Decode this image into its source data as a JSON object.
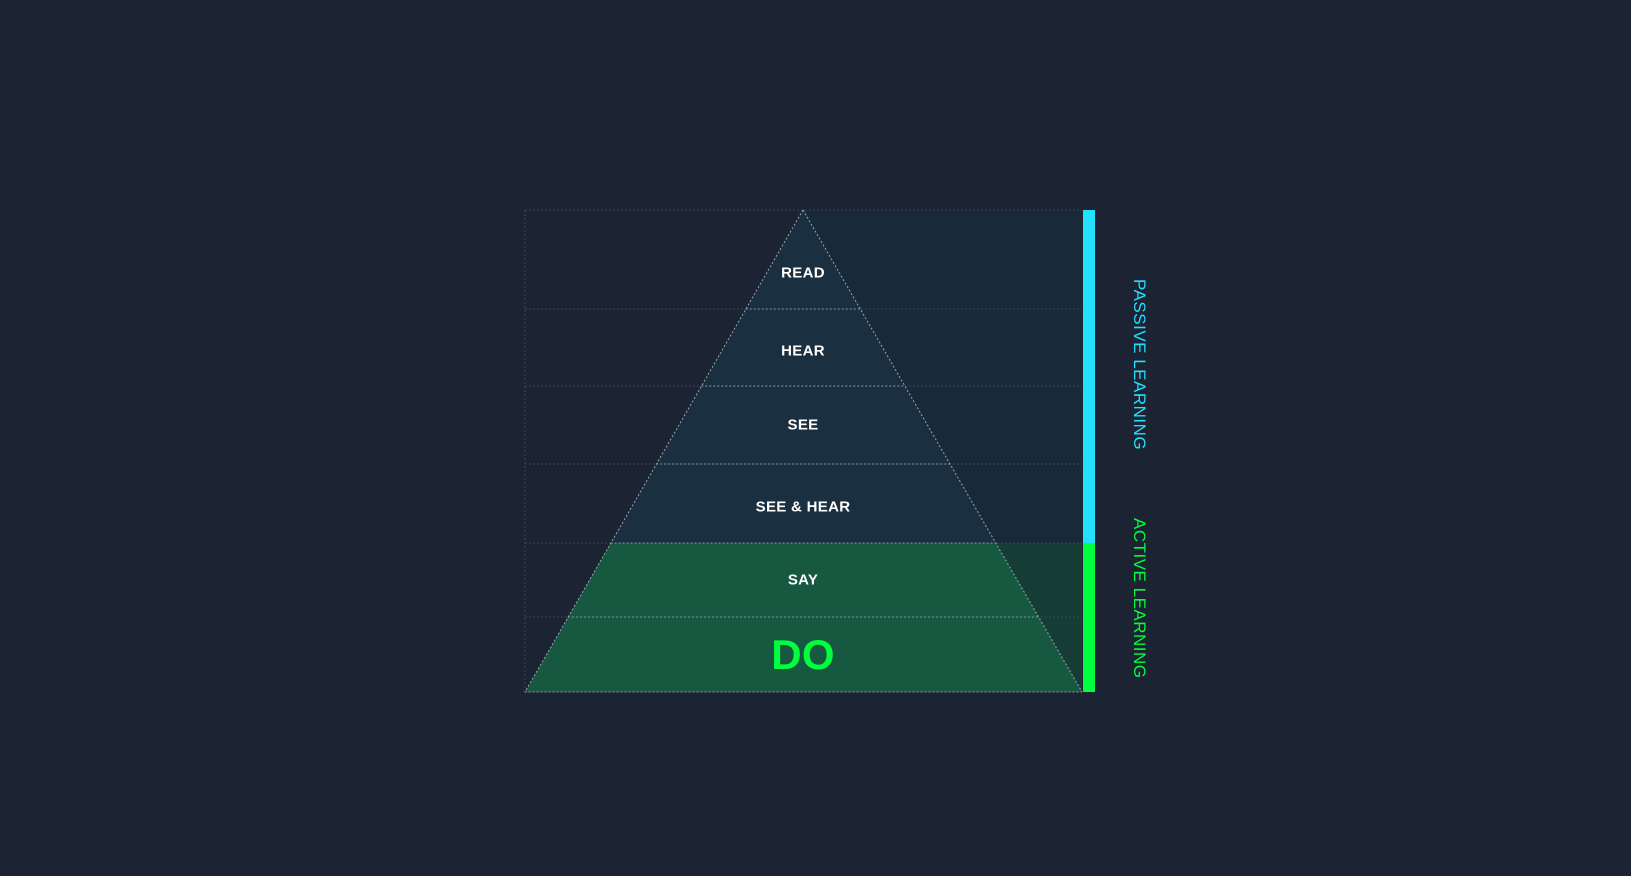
{
  "tiers": [
    {
      "label": "READ",
      "group": "passive"
    },
    {
      "label": "HEAR",
      "group": "passive"
    },
    {
      "label": "SEE",
      "group": "passive"
    },
    {
      "label": "SEE & HEAR",
      "group": "passive"
    },
    {
      "label": "SAY",
      "group": "active"
    },
    {
      "label": "DO",
      "group": "active"
    }
  ],
  "groups": {
    "passive": {
      "label": "PASSIVE LEARNING",
      "color": "#22e1ff"
    },
    "active": {
      "label": "ACTIVE LEARNING",
      "color": "#00ff3c"
    }
  },
  "colors": {
    "background": "#1c2333",
    "passive_fill": "#1a2f3f",
    "active_fill": "#165940",
    "passive_band": "#182a38",
    "active_band": "#153d35"
  }
}
